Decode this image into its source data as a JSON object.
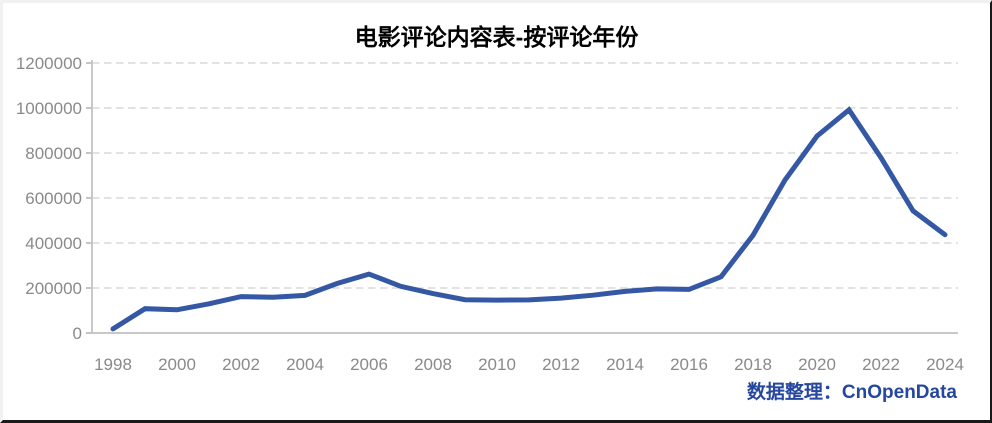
{
  "header": {
    "title": "电影评论内容表-按评论年份"
  },
  "footer": {
    "label": "数据整理：",
    "brand": "CnOpenData",
    "color": "#26479e"
  },
  "chart_data": {
    "type": "line",
    "title": "电影评论内容表-按评论年份",
    "xlabel": "",
    "ylabel": "",
    "x": [
      1998,
      1999,
      2000,
      2001,
      2002,
      2003,
      2004,
      2005,
      2006,
      2007,
      2008,
      2009,
      2010,
      2011,
      2012,
      2013,
      2014,
      2015,
      2016,
      2017,
      2018,
      2019,
      2020,
      2021,
      2022,
      2023,
      2024
    ],
    "values": [
      18000,
      108000,
      103000,
      130000,
      162000,
      159000,
      167000,
      220000,
      262000,
      207000,
      175000,
      148000,
      146000,
      147000,
      155000,
      168000,
      185000,
      196000,
      194000,
      250000,
      434000,
      680000,
      875000,
      992000,
      779000,
      543000,
      437000
    ],
    "ylim": [
      0,
      1200000
    ],
    "yticks": [
      0,
      200000,
      400000,
      600000,
      800000,
      1000000,
      1200000
    ],
    "xticks": [
      1998,
      2000,
      2002,
      2004,
      2006,
      2008,
      2010,
      2012,
      2014,
      2016,
      2018,
      2020,
      2022,
      2024
    ],
    "grid": "horizontal-dashed",
    "legend": false,
    "line_color": "#3458a4",
    "axis_color": "#c8c8c8",
    "grid_color": "#d9d9d9",
    "tick_color": "#b0b0b0",
    "tick_label_color": "#8a8a8a"
  }
}
